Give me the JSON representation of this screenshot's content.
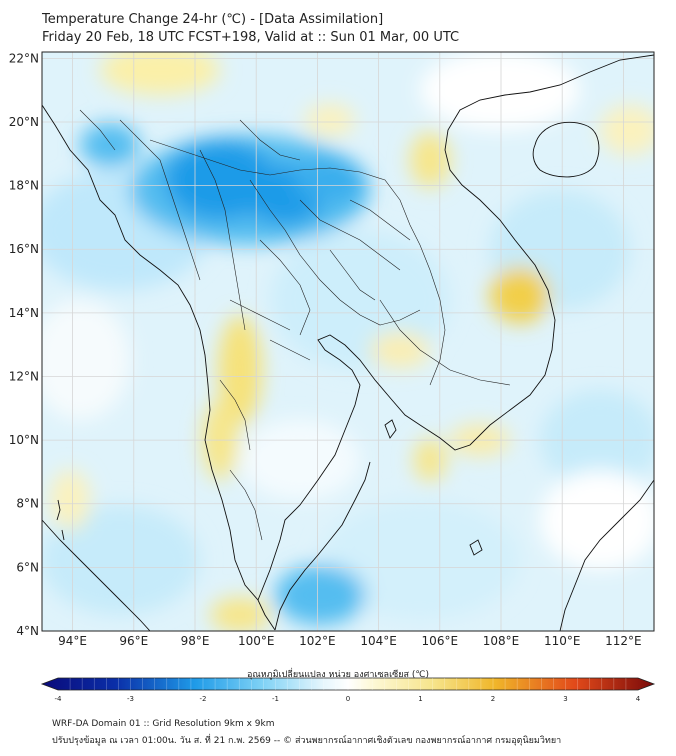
{
  "header": {
    "title": "Temperature Change 24-hr (℃) - [Data Assimilation]",
    "subtitle": "Friday 20 Feb, 18 UTC FCST+198, Valid at :: Sun 01 Mar, 00 UTC"
  },
  "map": {
    "lon_ticks": [
      "94°E",
      "96°E",
      "98°E",
      "100°E",
      "102°E",
      "104°E",
      "106°E",
      "108°E",
      "110°E",
      "112°E"
    ],
    "lat_ticks": [
      "22°N",
      "20°N",
      "18°N",
      "16°N",
      "14°N",
      "12°N",
      "10°N",
      "8°N",
      "6°N",
      "4°N"
    ],
    "lon_range": [
      93,
      113
    ],
    "lat_range": [
      4,
      22.2
    ]
  },
  "colorbar": {
    "label": "อุณหภูมิเปลี่ยนแปลง หน่วย องศาเซลเซียส (℃)",
    "ticks": [
      "-4",
      "-3",
      "-2",
      "-1",
      "0",
      "1",
      "2",
      "3",
      "4"
    ],
    "range": [
      -4,
      4
    ]
  },
  "footer": {
    "line1": "WRF-DA Domain 01 :: Grid Resolution 9km x 9km",
    "line2": "ปรับปรุงข้อมูล ณ เวลา 01:00น. วัน ส. ที่ 21 ก.พ. 2569 -- © ส่วนพยากรณ์อากาศเชิงตัวเลข กองพยากรณ์อากาศ กรมอุตุนิยมวิทยา"
  },
  "colors": {
    "cold_strong": "#0a2ea8",
    "cold_mid": "#1f9be8",
    "cold_light": "#bfe8fb",
    "neutral": "#ffffff",
    "warm_light": "#fbf2b2",
    "warm_mid": "#f2d94a",
    "warm_strong": "#d81f1f"
  }
}
